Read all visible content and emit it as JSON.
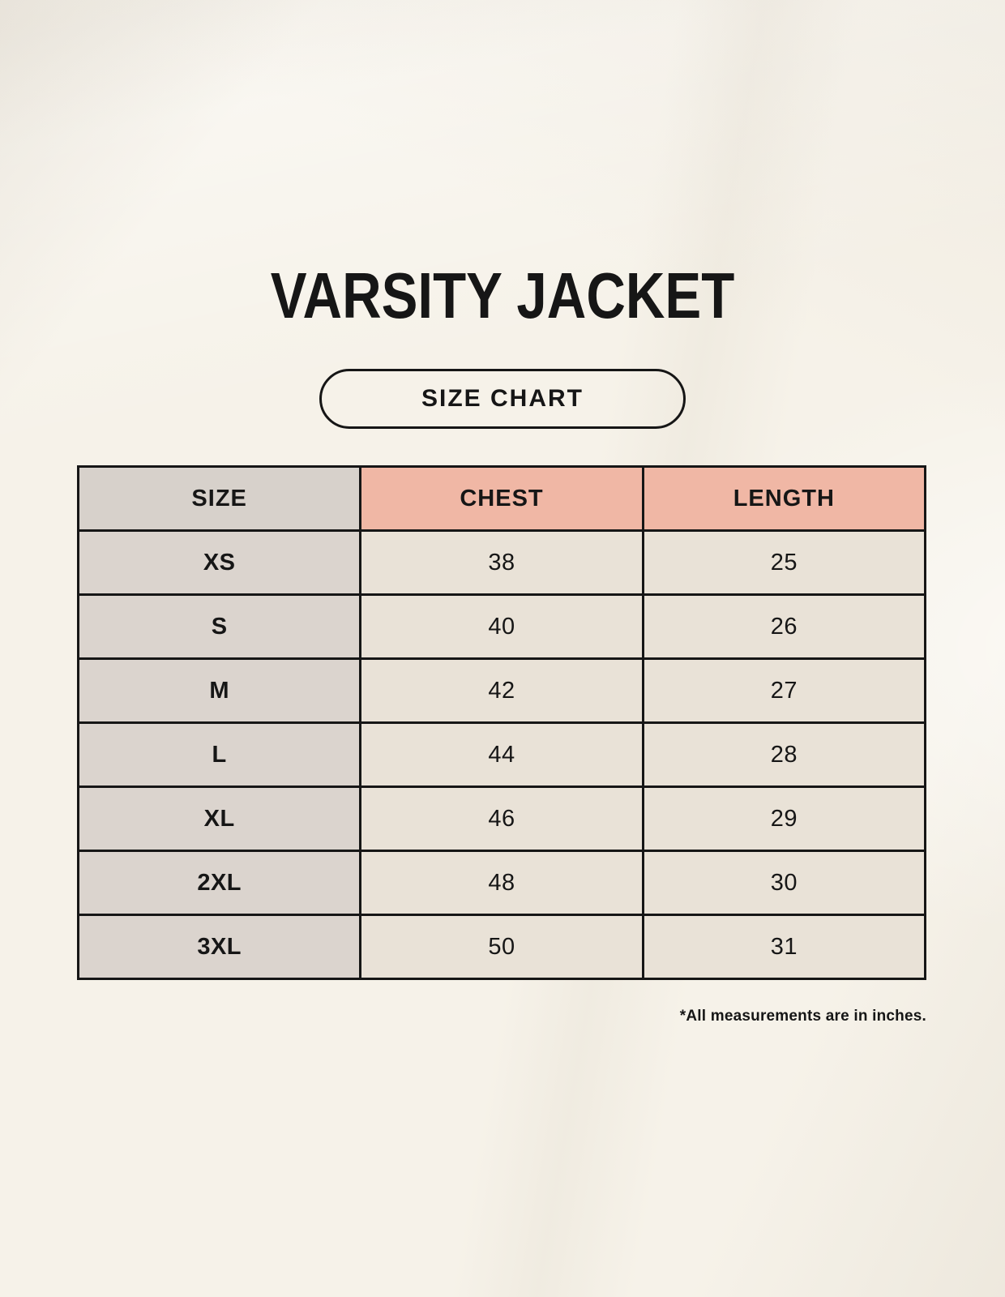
{
  "header": {
    "title": "VARSITY JACKET",
    "badge_label": "SIZE CHART"
  },
  "footnote": "*All measurements are in inches.",
  "colors": {
    "background": "#f6f2e9",
    "header_pink": "#f0b7a5",
    "header_gray": "#d7d1cb",
    "size_column_gray": "#dbd4ce",
    "data_cell_beige": "#e9e2d7",
    "border": "#161616",
    "text": "#161616"
  },
  "chart_data": {
    "type": "table",
    "title": "VARSITY JACKET",
    "subtitle": "SIZE CHART",
    "columns": [
      "SIZE",
      "CHEST",
      "LENGTH"
    ],
    "rows": [
      [
        "XS",
        "38",
        "25"
      ],
      [
        "S",
        "40",
        "26"
      ],
      [
        "M",
        "42",
        "27"
      ],
      [
        "L",
        "44",
        "28"
      ],
      [
        "XL",
        "46",
        "29"
      ],
      [
        "2XL",
        "48",
        "30"
      ],
      [
        "3XL",
        "50",
        "31"
      ]
    ],
    "units": "inches",
    "note": "*All measurements are in inches."
  }
}
